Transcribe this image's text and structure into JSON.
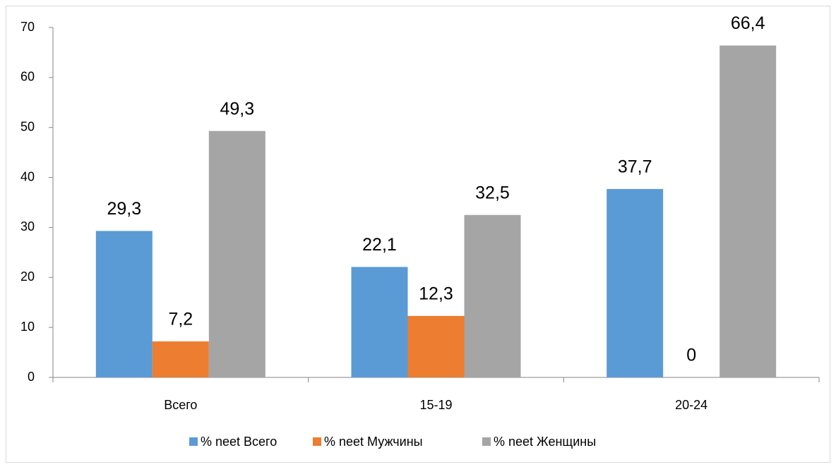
{
  "chart_data": {
    "type": "bar",
    "categories": [
      "Всего",
      "15-19",
      "20-24"
    ],
    "series": [
      {
        "name": "% neet Всего",
        "color": "#5b9bd5",
        "values": [
          29.3,
          22.1,
          37.7
        ],
        "value_labels": [
          "29,3",
          "22,1",
          "37,7"
        ]
      },
      {
        "name": "% neet Мужчины",
        "color": "#ed7d31",
        "values": [
          7.2,
          12.3,
          0
        ],
        "value_labels": [
          "7,2",
          "12,3",
          "0"
        ]
      },
      {
        "name": "% neet Женщины",
        "color": "#a5a5a5",
        "values": [
          49.3,
          32.5,
          66.4
        ],
        "value_labels": [
          "49,3",
          "32,5",
          "66,4"
        ]
      }
    ],
    "ylim": [
      0,
      70
    ],
    "yticks": [
      0,
      10,
      20,
      30,
      40,
      50,
      60,
      70
    ],
    "grid": false,
    "legend": "bottom"
  }
}
